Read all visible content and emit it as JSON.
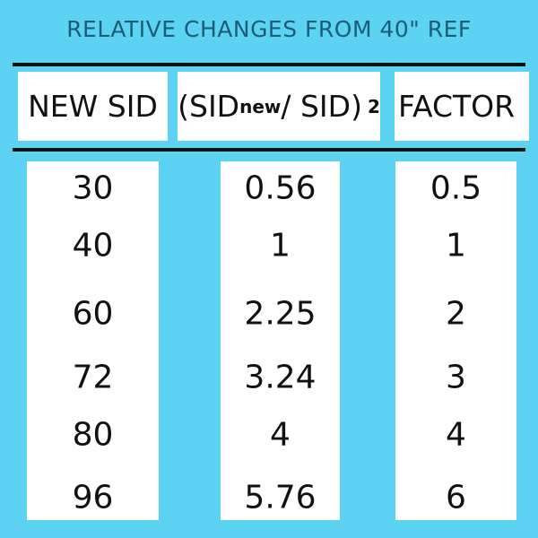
{
  "title": "RELATIVE CHANGES FROM 40\" REF",
  "header": [
    "NEW SID",
    {
      "base": "(SID",
      "sub": "new",
      "rest": "/ SID)",
      "sup": "2"
    },
    "FACTOR"
  ],
  "table": {
    "rows": [
      [
        "30",
        "0.56",
        "0.5"
      ],
      [
        "40",
        "1",
        "1"
      ],
      [
        "60",
        "2.25",
        "2"
      ],
      [
        "72",
        "3.24",
        "3"
      ],
      [
        "80",
        "4",
        "4"
      ],
      [
        "96",
        "5.76",
        "6"
      ]
    ]
  }
}
